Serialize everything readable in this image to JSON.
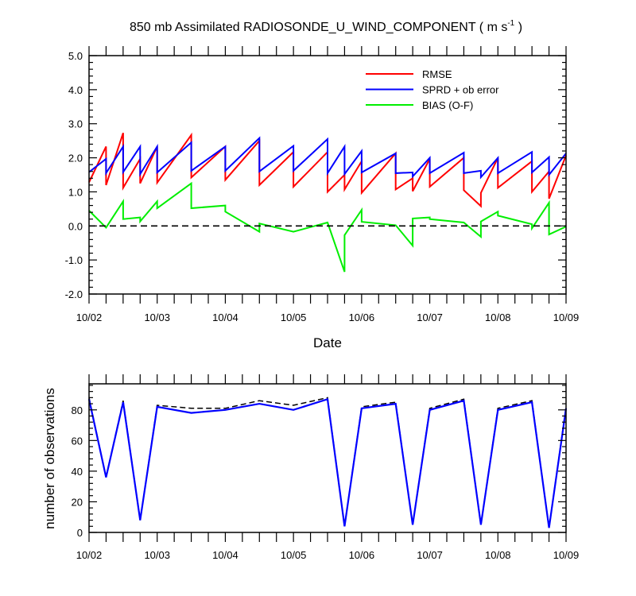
{
  "chart_data": [
    {
      "type": "line",
      "title": "850 mb Assimilated RADIOSONDE_U_WIND_COMPONENT",
      "title_units_base": "m s",
      "title_units_sup": "-1",
      "xlabel": "Date",
      "ylabel": "",
      "x_tick_labels": [
        "10/02",
        "10/03",
        "10/04",
        "10/05",
        "10/06",
        "10/07",
        "10/08",
        "10/09"
      ],
      "xlim": [
        0,
        7
      ],
      "ylim": [
        -2.0,
        5.0
      ],
      "y_tick_labels": [
        "-2.0",
        "-1.0",
        "0.0",
        "1.0",
        "2.0",
        "3.0",
        "4.0",
        "5.0"
      ],
      "zero_line": true,
      "grid": false,
      "legend_position": "top-right",
      "series": [
        {
          "name": "RMSE",
          "color": "#ff0000",
          "points": [
            [
              0.0,
              1.28
            ],
            [
              0.25,
              2.33
            ],
            [
              0.25,
              1.2
            ],
            [
              0.5,
              2.73
            ],
            [
              0.5,
              1.12
            ],
            [
              0.75,
              1.97
            ],
            [
              0.75,
              1.25
            ],
            [
              1.0,
              2.33
            ],
            [
              1.0,
              1.27
            ],
            [
              1.5,
              2.67
            ],
            [
              1.5,
              1.42
            ],
            [
              2.0,
              2.33
            ],
            [
              2.0,
              1.35
            ],
            [
              2.5,
              2.5
            ],
            [
              2.5,
              1.2
            ],
            [
              3.0,
              2.17
            ],
            [
              3.0,
              1.15
            ],
            [
              3.5,
              2.17
            ],
            [
              3.5,
              1.0
            ],
            [
              3.75,
              1.5
            ],
            [
              3.75,
              1.07
            ],
            [
              4.0,
              1.9
            ],
            [
              4.0,
              0.97
            ],
            [
              4.5,
              2.13
            ],
            [
              4.5,
              1.07
            ],
            [
              4.75,
              1.4
            ],
            [
              4.75,
              1.02
            ],
            [
              5.0,
              1.97
            ],
            [
              5.0,
              1.15
            ],
            [
              5.5,
              2.0
            ],
            [
              5.5,
              1.05
            ],
            [
              5.75,
              0.58
            ],
            [
              5.75,
              0.97
            ],
            [
              6.0,
              2.0
            ],
            [
              6.0,
              1.12
            ],
            [
              6.5,
              1.9
            ],
            [
              6.5,
              1.0
            ],
            [
              6.75,
              1.6
            ],
            [
              6.75,
              0.8
            ],
            [
              7.0,
              2.07
            ]
          ]
        },
        {
          "name": "SPRD + ob error",
          "color": "#0000ff",
          "points": [
            [
              0.0,
              1.58
            ],
            [
              0.25,
              1.97
            ],
            [
              0.25,
              1.55
            ],
            [
              0.5,
              2.33
            ],
            [
              0.5,
              1.58
            ],
            [
              0.75,
              2.33
            ],
            [
              0.75,
              1.52
            ],
            [
              1.0,
              2.33
            ],
            [
              1.0,
              1.57
            ],
            [
              1.5,
              2.45
            ],
            [
              1.5,
              1.62
            ],
            [
              2.0,
              2.33
            ],
            [
              2.0,
              1.62
            ],
            [
              2.5,
              2.58
            ],
            [
              2.5,
              1.6
            ],
            [
              3.0,
              2.35
            ],
            [
              3.0,
              1.62
            ],
            [
              3.5,
              2.55
            ],
            [
              3.5,
              1.55
            ],
            [
              3.75,
              2.33
            ],
            [
              3.75,
              1.52
            ],
            [
              4.0,
              2.2
            ],
            [
              4.0,
              1.57
            ],
            [
              4.5,
              2.13
            ],
            [
              4.5,
              1.55
            ],
            [
              4.75,
              1.57
            ],
            [
              4.75,
              1.45
            ],
            [
              5.0,
              2.0
            ],
            [
              5.0,
              1.55
            ],
            [
              5.5,
              2.15
            ],
            [
              5.5,
              1.55
            ],
            [
              5.75,
              1.62
            ],
            [
              5.75,
              1.43
            ],
            [
              6.0,
              2.0
            ],
            [
              6.0,
              1.55
            ],
            [
              6.5,
              2.17
            ],
            [
              6.5,
              1.57
            ],
            [
              6.75,
              2.02
            ],
            [
              6.75,
              1.5
            ],
            [
              7.0,
              2.13
            ]
          ]
        },
        {
          "name": "BIAS (O-F)",
          "color": "#00ee00",
          "points": [
            [
              0.0,
              0.45
            ],
            [
              0.25,
              -0.05
            ],
            [
              0.5,
              0.72
            ],
            [
              0.5,
              0.2
            ],
            [
              0.75,
              0.25
            ],
            [
              0.75,
              0.13
            ],
            [
              1.0,
              0.72
            ],
            [
              1.0,
              0.52
            ],
            [
              1.5,
              1.25
            ],
            [
              1.5,
              0.52
            ],
            [
              2.0,
              0.6
            ],
            [
              2.0,
              0.42
            ],
            [
              2.5,
              -0.17
            ],
            [
              2.5,
              0.07
            ],
            [
              3.0,
              -0.17
            ],
            [
              3.5,
              0.1
            ],
            [
              3.75,
              -1.35
            ],
            [
              3.75,
              -0.27
            ],
            [
              4.0,
              0.47
            ],
            [
              4.0,
              0.12
            ],
            [
              4.5,
              0.02
            ],
            [
              4.75,
              -0.58
            ],
            [
              4.75,
              0.22
            ],
            [
              5.0,
              0.25
            ],
            [
              5.0,
              0.2
            ],
            [
              5.5,
              0.1
            ],
            [
              5.75,
              -0.32
            ],
            [
              5.75,
              0.13
            ],
            [
              6.0,
              0.42
            ],
            [
              6.0,
              0.3
            ],
            [
              6.5,
              0.05
            ],
            [
              6.5,
              -0.07
            ],
            [
              6.75,
              0.68
            ],
            [
              6.75,
              -0.25
            ],
            [
              7.0,
              -0.02
            ]
          ]
        }
      ]
    },
    {
      "type": "line",
      "title": "",
      "xlabel": "",
      "ylabel": "number of observations",
      "x_tick_labels": [
        "10/02",
        "10/03",
        "10/04",
        "10/05",
        "10/06",
        "10/07",
        "10/08",
        "10/09"
      ],
      "xlim": [
        0,
        7
      ],
      "ylim": [
        0,
        97
      ],
      "y_tick_labels": [
        "0",
        "20",
        "40",
        "60",
        "80"
      ],
      "grid": false,
      "series": [
        {
          "style": "dashed",
          "color": "#000000",
          "points": [
            [
              0.0,
              88
            ],
            [
              0.25,
              36
            ],
            [
              0.5,
              86
            ],
            [
              0.75,
              8
            ],
            [
              1.0,
              83
            ],
            [
              1.5,
              81
            ],
            [
              2.0,
              81
            ],
            [
              2.5,
              86
            ],
            [
              3.0,
              83
            ],
            [
              3.5,
              88
            ],
            [
              3.75,
              4
            ],
            [
              4.0,
              82
            ],
            [
              4.5,
              85
            ],
            [
              4.75,
              5
            ],
            [
              5.0,
              81
            ],
            [
              5.5,
              87
            ],
            [
              5.75,
              5
            ],
            [
              6.0,
              81
            ],
            [
              6.5,
              86
            ],
            [
              6.75,
              3
            ],
            [
              7.0,
              82
            ]
          ]
        },
        {
          "style": "solid",
          "color": "#0000ff",
          "points": [
            [
              0.0,
              87
            ],
            [
              0.25,
              36
            ],
            [
              0.5,
              85
            ],
            [
              0.75,
              8
            ],
            [
              1.0,
              82
            ],
            [
              1.5,
              78
            ],
            [
              2.0,
              80
            ],
            [
              2.5,
              84
            ],
            [
              3.0,
              80
            ],
            [
              3.5,
              87
            ],
            [
              3.75,
              4
            ],
            [
              4.0,
              81
            ],
            [
              4.5,
              84
            ],
            [
              4.75,
              5
            ],
            [
              5.0,
              80
            ],
            [
              5.5,
              86
            ],
            [
              5.75,
              5
            ],
            [
              6.0,
              80
            ],
            [
              6.5,
              85
            ],
            [
              6.75,
              3
            ],
            [
              7.0,
              81
            ]
          ]
        }
      ]
    }
  ]
}
